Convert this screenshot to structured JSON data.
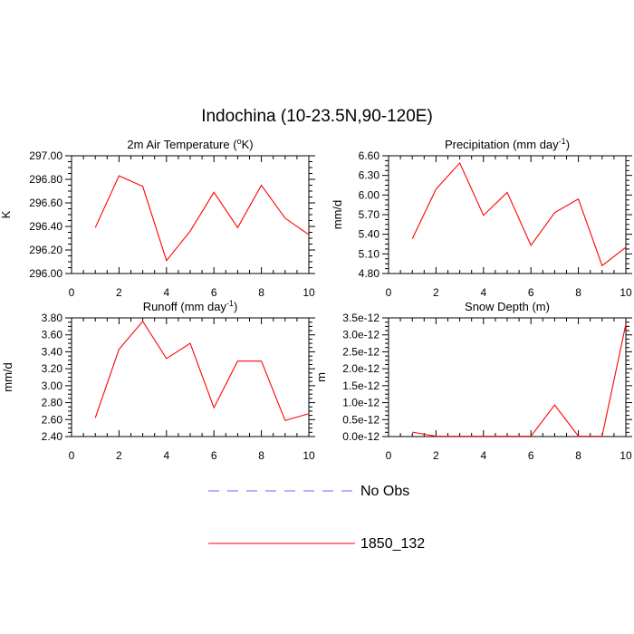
{
  "figure": {
    "title": "Indochina (10-23.5N,90-120E)"
  },
  "legend": {
    "placement": "bottom-center",
    "entries": [
      {
        "label": "No Obs",
        "color": "#6666ff",
        "style": "dashed"
      },
      {
        "label": "1850_132",
        "color": "#ff0000",
        "style": "solid"
      }
    ]
  },
  "chart_data": [
    {
      "type": "line",
      "title": "2m Air Temperature (",
      "title_sup": "o",
      "title_after": "K)",
      "ylabel": "K",
      "xlim": [
        0,
        10
      ],
      "ylim": [
        296.0,
        297.0
      ],
      "xticks": [
        0,
        2,
        4,
        6,
        8,
        10
      ],
      "xtick_labels": [
        "0",
        "2",
        "4",
        "6",
        "8",
        "10"
      ],
      "yticks": [
        296.0,
        296.2,
        296.4,
        296.6,
        296.8,
        297.0
      ],
      "ytick_labels": [
        "296.00",
        "296.20",
        "296.40",
        "296.60",
        "296.80",
        "297.00"
      ],
      "series": [
        {
          "name": "1850_132",
          "color": "#ff0000",
          "x": [
            1,
            2,
            3,
            4,
            5,
            6,
            7,
            8,
            9,
            10
          ],
          "y": [
            296.39,
            296.83,
            296.74,
            296.11,
            296.36,
            296.69,
            296.39,
            296.75,
            296.47,
            296.33
          ]
        }
      ]
    },
    {
      "type": "line",
      "title": "Precipitation (mm day",
      "title_sup": "-1",
      "title_after": ")",
      "ylabel": "mm/d",
      "xlim": [
        0,
        10
      ],
      "ylim": [
        4.8,
        6.6
      ],
      "xticks": [
        0,
        2,
        4,
        6,
        8,
        10
      ],
      "xtick_labels": [
        "0",
        "2",
        "4",
        "6",
        "8",
        "10"
      ],
      "yticks": [
        4.8,
        5.1,
        5.4,
        5.7,
        6.0,
        6.3,
        6.6
      ],
      "ytick_labels": [
        "4.80",
        "5.10",
        "5.40",
        "5.70",
        "6.00",
        "6.30",
        "6.60"
      ],
      "series": [
        {
          "name": "1850_132",
          "color": "#ff0000",
          "x": [
            1,
            2,
            3,
            4,
            5,
            6,
            7,
            8,
            9,
            10
          ],
          "y": [
            5.33,
            6.09,
            6.49,
            5.69,
            6.04,
            5.23,
            5.73,
            5.94,
            4.92,
            5.2
          ]
        }
      ]
    },
    {
      "type": "line",
      "title": "Runoff (mm day",
      "title_sup": "-1",
      "title_after": ")",
      "ylabel": "mm/d",
      "xlim": [
        0,
        10
      ],
      "ylim": [
        2.4,
        3.8
      ],
      "xticks": [
        0,
        2,
        4,
        6,
        8,
        10
      ],
      "xtick_labels": [
        "0",
        "2",
        "4",
        "6",
        "8",
        "10"
      ],
      "yticks": [
        2.4,
        2.6,
        2.8,
        3.0,
        3.2,
        3.4,
        3.6,
        3.8
      ],
      "ytick_labels": [
        "2.40",
        "2.60",
        "2.80",
        "3.00",
        "3.20",
        "3.40",
        "3.60",
        "3.80"
      ],
      "series": [
        {
          "name": "1850_132",
          "color": "#ff0000",
          "x": [
            1,
            2,
            3,
            4,
            5,
            6,
            7,
            8,
            9,
            10
          ],
          "y": [
            2.62,
            3.43,
            3.76,
            3.32,
            3.5,
            2.74,
            3.29,
            3.29,
            2.59,
            2.67
          ]
        }
      ]
    },
    {
      "type": "line",
      "title": "Snow Depth (m)",
      "title_sup": "",
      "title_after": "",
      "ylabel": "m",
      "xlim": [
        0,
        10
      ],
      "ylim": [
        0,
        3.5e-12
      ],
      "xticks": [
        0,
        2,
        4,
        6,
        8,
        10
      ],
      "xtick_labels": [
        "0",
        "2",
        "4",
        "6",
        "8",
        "10"
      ],
      "yticks": [
        0,
        5e-13,
        1e-12,
        1.5e-12,
        2e-12,
        2.5e-12,
        3e-12,
        3.5e-12
      ],
      "ytick_labels": [
        "0.0e-12",
        "0.5e-12",
        "1.0e-12",
        "1.5e-12",
        "2.0e-12",
        "2.5e-12",
        "3.0e-12",
        "3.5e-12"
      ],
      "series": [
        {
          "name": "1850_132",
          "color": "#ff0000",
          "x": [
            1,
            2,
            3,
            4,
            5,
            6,
            7,
            8,
            9,
            10
          ],
          "y": [
            1.3e-13,
            1e-14,
            1e-14,
            1e-14,
            1e-14,
            1e-14,
            9.3e-13,
            1e-14,
            1e-14,
            3.32e-12
          ]
        }
      ]
    }
  ]
}
